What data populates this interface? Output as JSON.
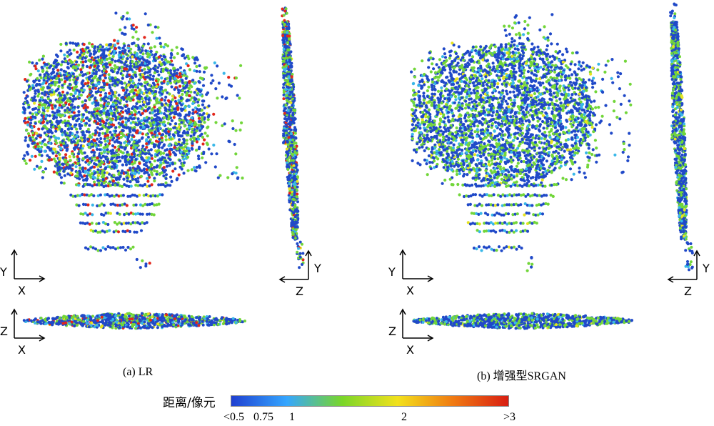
{
  "panels": [
    {
      "id": "a",
      "caption": "(a) LR",
      "red_ratio": 0.08,
      "axes_labels": {
        "front": {
          "vertical": "Y",
          "horizontal": "X"
        },
        "side": {
          "vertical": "Y",
          "horizontal": "Z"
        },
        "bottom": {
          "vertical": "Z",
          "horizontal": "X"
        }
      }
    },
    {
      "id": "b",
      "caption": "(b) 增强型SRGAN",
      "red_ratio": 0.0,
      "axes_labels": {
        "front": {
          "vertical": "Y",
          "horizontal": "X"
        },
        "side": {
          "vertical": "Y",
          "horizontal": "Z"
        },
        "bottom": {
          "vertical": "Z",
          "horizontal": "X"
        }
      }
    }
  ],
  "legend": {
    "title": "距离/像元",
    "ticks": [
      "<0.5",
      "0.75",
      "1",
      "2",
      ">3"
    ],
    "tick_values": [
      0.5,
      0.75,
      1,
      2,
      3
    ],
    "colors": [
      "#1f3fd0",
      "#35a6ff",
      "#7ad629",
      "#f2e11c",
      "#f07a12",
      "#d81e12"
    ]
  },
  "colors": {
    "blue": "#2049c8",
    "cyan": "#39b7e8",
    "green": "#72d63a",
    "yellow": "#e6e31f",
    "red": "#e2261b"
  }
}
